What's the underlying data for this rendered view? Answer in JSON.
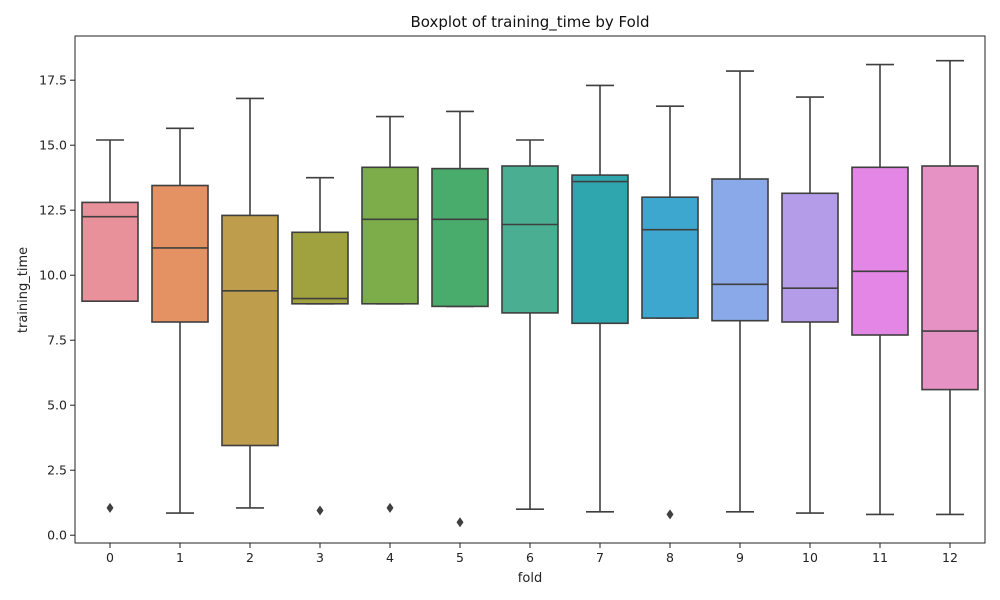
{
  "chart_data": {
    "type": "boxplot",
    "title": "Boxplot of training_time by Fold",
    "xlabel": "fold",
    "ylabel": "training_time",
    "ylim": [
      -0.3,
      19.2
    ],
    "yticks": [
      "0.0",
      "2.5",
      "5.0",
      "7.5",
      "10.0",
      "12.5",
      "15.0",
      "17.5"
    ],
    "ytick_values": [
      0.0,
      2.5,
      5.0,
      7.5,
      10.0,
      12.5,
      15.0,
      17.5
    ],
    "grid": false,
    "box_edge_color": "#3f3f3f",
    "categories": [
      "0",
      "1",
      "2",
      "3",
      "4",
      "5",
      "6",
      "7",
      "8",
      "9",
      "10",
      "11",
      "12"
    ],
    "boxes": [
      {
        "whisker_low": 9.0,
        "q1": 9.0,
        "median": 12.25,
        "q3": 12.8,
        "whisker_high": 15.2,
        "outliers": [
          1.05
        ],
        "color": "#e8919b"
      },
      {
        "whisker_low": 0.85,
        "q1": 8.2,
        "median": 11.05,
        "q3": 13.45,
        "whisker_high": 15.65,
        "outliers": [],
        "color": "#e49263"
      },
      {
        "whisker_low": 1.05,
        "q1": 3.45,
        "median": 9.4,
        "q3": 12.3,
        "whisker_high": 16.8,
        "outliers": [],
        "color": "#be9d4c"
      },
      {
        "whisker_low": 8.9,
        "q1": 8.9,
        "median": 9.1,
        "q3": 11.65,
        "whisker_high": 13.75,
        "outliers": [
          0.95
        ],
        "color": "#a0a23f"
      },
      {
        "whisker_low": 8.9,
        "q1": 8.9,
        "median": 12.15,
        "q3": 14.15,
        "whisker_high": 16.1,
        "outliers": [
          1.05
        ],
        "color": "#7cad4a"
      },
      {
        "whisker_low": 8.8,
        "q1": 8.8,
        "median": 12.15,
        "q3": 14.1,
        "whisker_high": 16.3,
        "outliers": [
          0.5
        ],
        "color": "#49ac6d"
      },
      {
        "whisker_low": 1.0,
        "q1": 8.55,
        "median": 11.95,
        "q3": 14.2,
        "whisker_high": 15.2,
        "outliers": [],
        "color": "#4aae92"
      },
      {
        "whisker_low": 0.9,
        "q1": 8.15,
        "median": 13.6,
        "q3": 13.85,
        "whisker_high": 17.3,
        "outliers": [],
        "color": "#2fa6ad"
      },
      {
        "whisker_low": 8.35,
        "q1": 8.35,
        "median": 11.75,
        "q3": 13.0,
        "whisker_high": 16.5,
        "outliers": [
          0.8
        ],
        "color": "#3ea7cf"
      },
      {
        "whisker_low": 0.9,
        "q1": 8.25,
        "median": 9.65,
        "q3": 13.7,
        "whisker_high": 17.85,
        "outliers": [],
        "color": "#8aa9e8"
      },
      {
        "whisker_low": 0.85,
        "q1": 8.2,
        "median": 9.5,
        "q3": 13.15,
        "whisker_high": 16.85,
        "outliers": [],
        "color": "#b59ce9"
      },
      {
        "whisker_low": 0.8,
        "q1": 7.7,
        "median": 10.15,
        "q3": 14.15,
        "whisker_high": 18.1,
        "outliers": [],
        "color": "#e386e5"
      },
      {
        "whisker_low": 0.8,
        "q1": 5.6,
        "median": 7.85,
        "q3": 14.2,
        "whisker_high": 18.25,
        "outliers": [],
        "color": "#e792c4"
      }
    ]
  }
}
